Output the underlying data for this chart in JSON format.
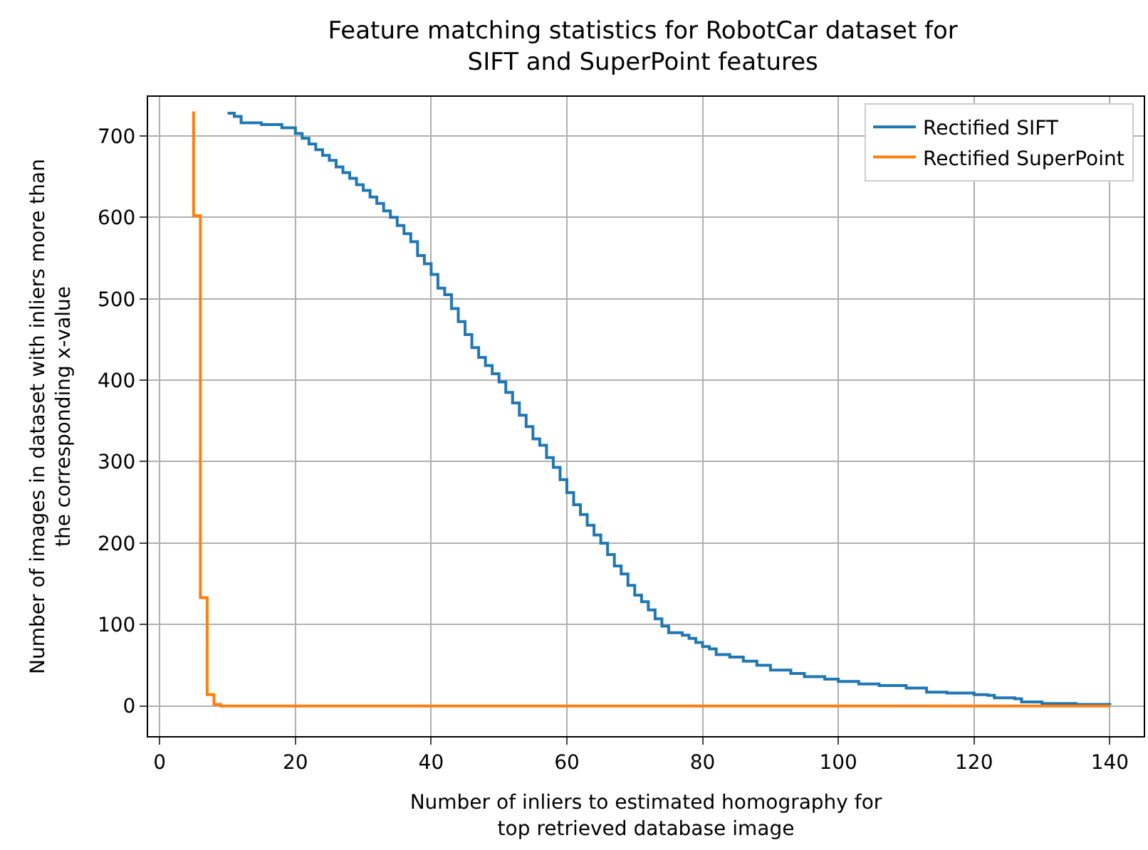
{
  "chart_data": {
    "type": "step",
    "title": "Feature matching statistics for RobotCar dataset for\nSIFT and SuperPoint features",
    "xlabel": "Number of inliers to estimated homography for\ntop retrieved database image",
    "ylabel": "Number of images in dataset with inliers more than\nthe corresponding x-value",
    "series": [
      {
        "name": "Rectified SIFT",
        "color": "#1f77b4",
        "x": [
          10,
          11,
          12,
          15,
          18,
          20,
          21,
          22,
          23,
          24,
          25,
          26,
          27,
          28,
          29,
          30,
          31,
          32,
          33,
          34,
          35,
          36,
          37,
          38,
          39,
          40,
          41,
          42,
          43,
          44,
          45,
          46,
          47,
          48,
          49,
          50,
          51,
          52,
          53,
          54,
          55,
          56,
          57,
          58,
          59,
          60,
          61,
          62,
          63,
          64,
          65,
          66,
          67,
          68,
          69,
          70,
          71,
          72,
          73,
          74,
          75,
          77,
          78,
          79,
          80,
          81,
          82,
          84,
          86,
          88,
          90,
          93,
          95,
          98,
          100,
          103,
          106,
          110,
          113,
          116,
          120,
          122,
          123,
          126,
          127,
          130,
          135,
          140
        ],
        "values": [
          728,
          724,
          716,
          714,
          710,
          703,
          697,
          690,
          683,
          676,
          670,
          662,
          655,
          648,
          640,
          633,
          625,
          617,
          608,
          600,
          590,
          580,
          570,
          553,
          543,
          530,
          513,
          505,
          488,
          472,
          456,
          440,
          428,
          418,
          408,
          398,
          385,
          372,
          357,
          343,
          328,
          320,
          305,
          293,
          278,
          262,
          247,
          235,
          222,
          210,
          200,
          186,
          172,
          162,
          148,
          136,
          128,
          118,
          107,
          98,
          90,
          87,
          83,
          78,
          73,
          70,
          63,
          60,
          55,
          50,
          44,
          40,
          36,
          33,
          30,
          27,
          25,
          22,
          17,
          16,
          14,
          13,
          10,
          9,
          5,
          3,
          2,
          1
        ]
      },
      {
        "name": "Rectified SuperPoint",
        "color": "#ff7f0e",
        "x": [
          5,
          5,
          6,
          7,
          8,
          9,
          140
        ],
        "values": [
          730,
          602,
          133,
          14,
          2,
          0,
          0
        ]
      }
    ],
    "xlim": [
      -1.7,
      145
    ],
    "ylim": [
      -37,
      748
    ],
    "xticks": [
      0,
      20,
      40,
      60,
      80,
      100,
      120,
      140
    ],
    "yticks": [
      0,
      100,
      200,
      300,
      400,
      500,
      600,
      700
    ],
    "grid": true,
    "legend": "top right"
  }
}
